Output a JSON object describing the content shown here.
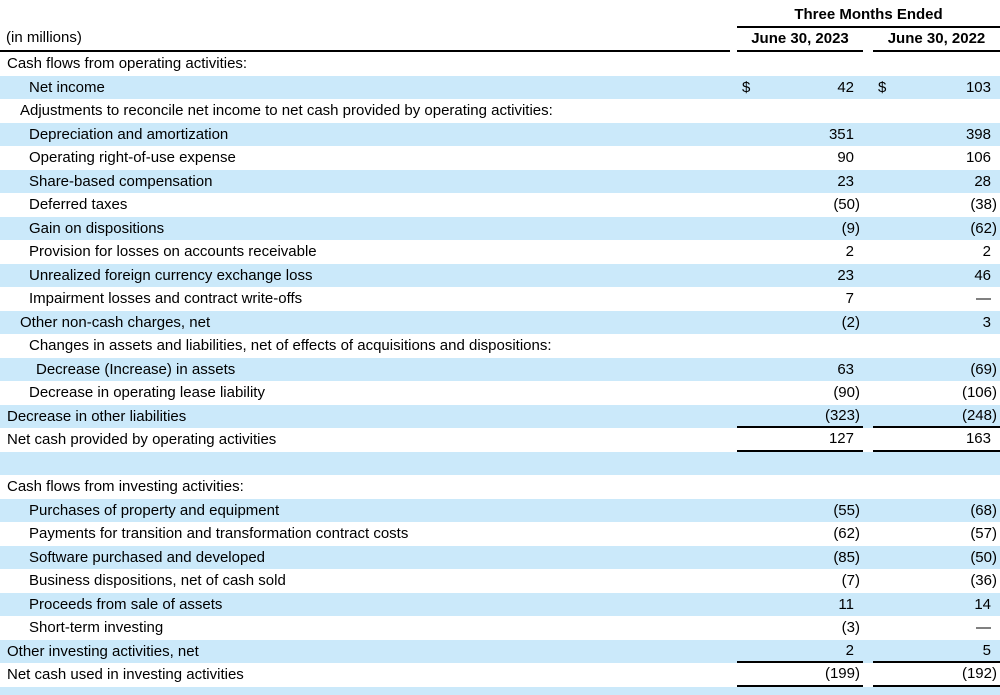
{
  "header": {
    "in_millions": "(in millions)",
    "period_title": "Three Months Ended",
    "col_2023": "June 30, 2023",
    "col_2022": "June 30, 2022"
  },
  "colors": {
    "row_highlight": "#cbe9fa",
    "text": "#000000",
    "rule": "#000000"
  },
  "rows": [
    {
      "label": "Cash flows from operating activities:",
      "indent": 0,
      "shade": false,
      "dollar": false,
      "rule": false,
      "v2023": "",
      "v2022": ""
    },
    {
      "label": "Net income",
      "indent": 2,
      "shade": true,
      "dollar": true,
      "rule": false,
      "v2023": "42",
      "v2022": "103"
    },
    {
      "label": "Adjustments to reconcile net income to net cash provided by operating activities:",
      "indent": 1,
      "shade": false,
      "dollar": false,
      "rule": false,
      "v2023": "",
      "v2022": ""
    },
    {
      "label": "Depreciation and amortization",
      "indent": 2,
      "shade": true,
      "dollar": false,
      "rule": false,
      "v2023": "351",
      "v2022": "398"
    },
    {
      "label": "Operating right-of-use expense",
      "indent": 2,
      "shade": false,
      "dollar": false,
      "rule": false,
      "v2023": "90",
      "v2022": "106"
    },
    {
      "label": "Share-based compensation",
      "indent": 2,
      "shade": true,
      "dollar": false,
      "rule": false,
      "v2023": "23",
      "v2022": "28"
    },
    {
      "label": "Deferred taxes",
      "indent": 2,
      "shade": false,
      "dollar": false,
      "rule": false,
      "v2023": "(50)",
      "v2022": "(38)"
    },
    {
      "label": "Gain on dispositions",
      "indent": 2,
      "shade": true,
      "dollar": false,
      "rule": false,
      "v2023": "(9)",
      "v2022": "(62)"
    },
    {
      "label": "Provision for losses on accounts receivable",
      "indent": 2,
      "shade": false,
      "dollar": false,
      "rule": false,
      "v2023": "2",
      "v2022": "2"
    },
    {
      "label": "Unrealized foreign currency exchange loss",
      "indent": 2,
      "shade": true,
      "dollar": false,
      "rule": false,
      "v2023": "23",
      "v2022": "46"
    },
    {
      "label": "Impairment losses and contract write-offs",
      "indent": 2,
      "shade": false,
      "dollar": false,
      "rule": false,
      "v2023": "7",
      "v2022": "—"
    },
    {
      "label": "Other non-cash charges, net",
      "indent": 1,
      "shade": true,
      "dollar": false,
      "rule": false,
      "v2023": "(2)",
      "v2022": "3"
    },
    {
      "label": "Changes in assets and liabilities, net of effects of acquisitions and dispositions:",
      "indent": 2,
      "shade": false,
      "dollar": false,
      "rule": false,
      "v2023": "",
      "v2022": ""
    },
    {
      "label": "Decrease (Increase) in assets",
      "indent": 3,
      "shade": true,
      "dollar": false,
      "rule": false,
      "v2023": "63",
      "v2022": "(69)"
    },
    {
      "label": "Decrease in operating lease liability",
      "indent": 2,
      "shade": false,
      "dollar": false,
      "rule": false,
      "v2023": "(90)",
      "v2022": "(106)"
    },
    {
      "label": "Decrease in other liabilities",
      "indent": 0,
      "shade": true,
      "dollar": false,
      "rule": true,
      "v2023": "(323)",
      "v2022": "(248)"
    },
    {
      "label": "Net cash provided by operating activities",
      "indent": 0,
      "shade": false,
      "dollar": false,
      "rule": true,
      "v2023": "127",
      "v2022": "163"
    },
    {
      "label": "",
      "indent": 0,
      "shade": true,
      "dollar": false,
      "rule": false,
      "v2023": "",
      "v2022": "",
      "spacer": true
    },
    {
      "label": "Cash flows from investing activities:",
      "indent": 0,
      "shade": false,
      "dollar": false,
      "rule": false,
      "v2023": "",
      "v2022": ""
    },
    {
      "label": "Purchases of property and equipment",
      "indent": 2,
      "shade": true,
      "dollar": false,
      "rule": false,
      "v2023": "(55)",
      "v2022": "(68)"
    },
    {
      "label": "Payments for transition and transformation contract costs",
      "indent": 2,
      "shade": false,
      "dollar": false,
      "rule": false,
      "v2023": "(62)",
      "v2022": "(57)"
    },
    {
      "label": "Software purchased and developed",
      "indent": 2,
      "shade": true,
      "dollar": false,
      "rule": false,
      "v2023": "(85)",
      "v2022": "(50)"
    },
    {
      "label": "Business dispositions, net of cash sold",
      "indent": 2,
      "shade": false,
      "dollar": false,
      "rule": false,
      "v2023": "(7)",
      "v2022": "(36)"
    },
    {
      "label": "Proceeds from sale of assets",
      "indent": 2,
      "shade": true,
      "dollar": false,
      "rule": false,
      "v2023": "11",
      "v2022": "14"
    },
    {
      "label": "Short-term investing",
      "indent": 2,
      "shade": false,
      "dollar": false,
      "rule": false,
      "v2023": "(3)",
      "v2022": "—"
    },
    {
      "label": "Other investing activities, net",
      "indent": 0,
      "shade": true,
      "dollar": false,
      "rule": true,
      "v2023": "2",
      "v2022": "5"
    },
    {
      "label": "Net cash used in investing activities",
      "indent": 0,
      "shade": false,
      "dollar": false,
      "rule": true,
      "v2023": "(199)",
      "v2022": "(192)"
    },
    {
      "label": "",
      "indent": 0,
      "shade": true,
      "dollar": false,
      "rule": false,
      "v2023": "",
      "v2022": "",
      "spacer": true
    }
  ]
}
